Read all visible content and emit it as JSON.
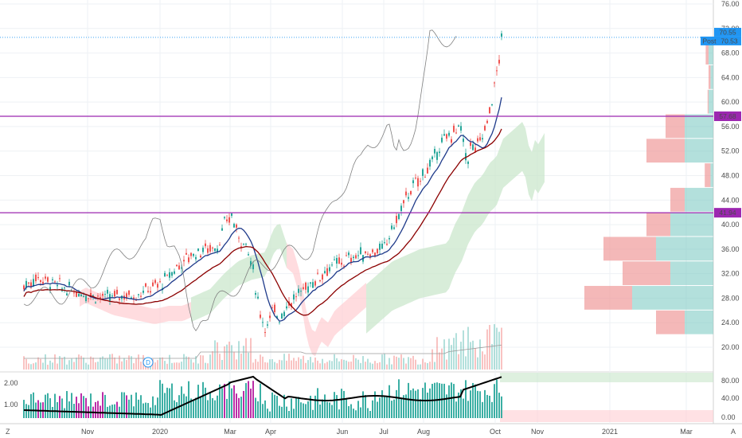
{
  "chart_data": [
    {
      "type": "candlestick",
      "title": "",
      "ylim": [
        18,
        77
      ],
      "y_ticks": [
        "76.00",
        "72.00",
        "68.00",
        "64.00",
        "60.00",
        "56.00",
        "52.00",
        "48.00",
        "44.00",
        "40.00",
        "36.00",
        "32.00",
        "28.00",
        "24.00",
        "20.00"
      ],
      "x_ticks": [
        "Nov",
        "2020",
        "Mar",
        "Apr",
        "Jun",
        "Jul",
        "Aug",
        "Oct",
        "Nov",
        "2021",
        "Mar"
      ],
      "horizontal_levels": [
        {
          "label": "57.68",
          "value": 57.68,
          "color": "#9c27b0"
        },
        {
          "label": "41.94",
          "value": 41.94,
          "color": "#9c27b0"
        }
      ],
      "last_price": {
        "label": "70.55",
        "value": 70.55,
        "color": "#2196f3"
      },
      "post_price": {
        "badge": "Post",
        "label": "70.53",
        "value": 70.53,
        "color": "#2196f3"
      },
      "event_marker": {
        "label": "D"
      },
      "price_path": [
        [
          0,
          30
        ],
        [
          0.02,
          31.5
        ],
        [
          0.04,
          30.5
        ],
        [
          0.06,
          29.5
        ],
        [
          0.08,
          29
        ],
        [
          0.1,
          28.5
        ],
        [
          0.12,
          28
        ],
        [
          0.14,
          28.5
        ],
        [
          0.16,
          28.5
        ],
        [
          0.18,
          29.5
        ],
        [
          0.2,
          30.5
        ],
        [
          0.22,
          33
        ],
        [
          0.24,
          35
        ],
        [
          0.26,
          36
        ],
        [
          0.28,
          36.5
        ],
        [
          0.29,
          40
        ],
        [
          0.3,
          41.5
        ],
        [
          0.31,
          38
        ],
        [
          0.32,
          37
        ],
        [
          0.33,
          33
        ],
        [
          0.34,
          26
        ],
        [
          0.35,
          23
        ],
        [
          0.36,
          26
        ],
        [
          0.37,
          25
        ],
        [
          0.38,
          27
        ],
        [
          0.39,
          28
        ],
        [
          0.4,
          29
        ],
        [
          0.42,
          31
        ],
        [
          0.44,
          33
        ],
        [
          0.46,
          34
        ],
        [
          0.48,
          35
        ],
        [
          0.5,
          35.5
        ],
        [
          0.52,
          36
        ],
        [
          0.53,
          39
        ],
        [
          0.54,
          41
        ],
        [
          0.55,
          44
        ],
        [
          0.56,
          46
        ],
        [
          0.57,
          47
        ],
        [
          0.58,
          49
        ],
        [
          0.59,
          50
        ],
        [
          0.6,
          53
        ],
        [
          0.61,
          54
        ],
        [
          0.62,
          55
        ],
        [
          0.63,
          56
        ],
        [
          0.635,
          53
        ],
        [
          0.64,
          50
        ],
        [
          0.645,
          53
        ],
        [
          0.65,
          52
        ],
        [
          0.66,
          54
        ],
        [
          0.67,
          57
        ],
        [
          0.675,
          60
        ],
        [
          0.68,
          63
        ],
        [
          0.685,
          66
        ],
        [
          0.69,
          70.5
        ]
      ],
      "volume_profile": [
        {
          "price": 68,
          "up": 0.05,
          "down": 0.03
        },
        {
          "price": 64,
          "up": 0.03,
          "down": 0.02
        },
        {
          "price": 60,
          "up": 0.05,
          "down": 0.01
        },
        {
          "price": 56,
          "up": 0.3,
          "down": 0.2
        },
        {
          "price": 52,
          "up": 0.3,
          "down": 0.4
        },
        {
          "price": 48,
          "up": 0.03,
          "down": 0.06
        },
        {
          "price": 44,
          "up": 0.3,
          "down": 0.15
        },
        {
          "price": 40,
          "up": 0.45,
          "down": 0.25
        },
        {
          "price": 36,
          "up": 0.6,
          "down": 0.55
        },
        {
          "price": 32,
          "up": 0.45,
          "down": 0.5
        },
        {
          "price": 28,
          "up": 0.85,
          "down": 0.5
        },
        {
          "price": 24,
          "up": 0.3,
          "down": 0.3
        }
      ]
    },
    {
      "type": "bar+line",
      "title": "",
      "y_ticks_left": [
        "2.00",
        "1.00"
      ],
      "y_ticks_right": [
        "80.00",
        "40.00",
        "0.00"
      ]
    }
  ],
  "bottom_bar": {
    "left_label": "Z",
    "right_label": "A"
  }
}
